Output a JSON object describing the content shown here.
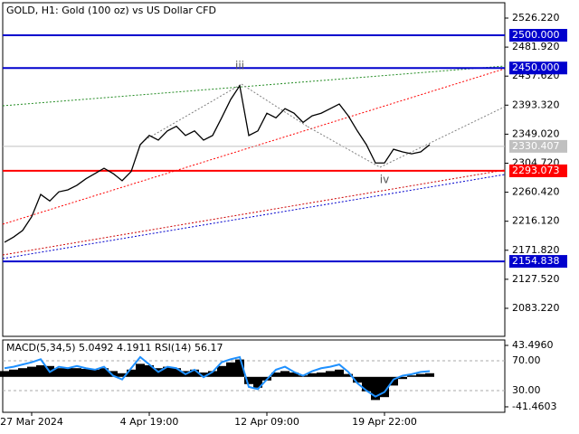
{
  "chart_data": [
    {
      "type": "line",
      "title": "GOLD, H1:  Gold (100 oz) vs US Dollar CFD",
      "color": "#000000",
      "values": [
        2184,
        2192,
        2202,
        2223,
        2257,
        2247,
        2261,
        2264,
        2271,
        2281,
        2289,
        2297,
        2289,
        2278,
        2292,
        2333,
        2347,
        2340,
        2354,
        2361,
        2347,
        2354,
        2340,
        2347,
        2374,
        2402,
        2423,
        2347,
        2354,
        2381,
        2374,
        2388,
        2381,
        2367,
        2377,
        2381,
        2388,
        2395,
        2377,
        2354,
        2333,
        2305,
        2305,
        2326,
        2322,
        2319,
        2322,
        2333
      ],
      "ylim": [
        2040.4,
        2548.3
      ],
      "yticks": [
        {
          "value": 2526.22,
          "label": "2526.220"
        },
        {
          "value": 2481.92,
          "label": "2481.920"
        },
        {
          "value": 2437.62,
          "label": "2437.620"
        },
        {
          "value": 2393.32,
          "label": "2393.320"
        },
        {
          "value": 2349.02,
          "label": "2349.020"
        },
        {
          "value": 2304.72,
          "label": "2304.720"
        },
        {
          "value": 2260.42,
          "label": "2260.420"
        },
        {
          "value": 2216.12,
          "label": "2216.120"
        },
        {
          "value": 2171.82,
          "label": "2171.820"
        },
        {
          "value": 2127.52,
          "label": "2127.520"
        },
        {
          "value": 2083.22,
          "label": "2083.220"
        }
      ],
      "xticks": [
        {
          "value": 3,
          "label": "27 Mar 2024"
        },
        {
          "value": 16,
          "label": "4 Apr 19:00"
        },
        {
          "value": 29,
          "label": "12 Apr 09:00"
        },
        {
          "value": 42,
          "label": "19 Apr 22:00"
        }
      ],
      "levels": [
        {
          "value": 2500,
          "label": "2500.000",
          "color": "#0000cd"
        },
        {
          "value": 2450,
          "label": "2450.000",
          "color": "#0000cd"
        },
        {
          "value": 2330.407,
          "label": "2330.407",
          "color": "#c0c0c0"
        },
        {
          "value": 2293.073,
          "label": "2293.073",
          "color": "#ff0000"
        },
        {
          "value": 2154.838,
          "label": "2154.838",
          "color": "#0000cd"
        }
      ],
      "annotations": [
        {
          "text": "iii",
          "at": 26,
          "price": 2453
        },
        {
          "text": "iv",
          "at": 42,
          "price": 2279
        }
      ]
    },
    {
      "type": "macd",
      "title": "MACD(5,34,5) 5.0492 4.1911 RSI(14) 56.17",
      "series": [
        {
          "name": "MACD",
          "color": "#000000",
          "values": [
            8,
            10,
            12,
            14,
            16,
            15,
            12,
            13,
            12,
            11,
            10,
            12,
            8,
            5,
            10,
            18,
            16,
            12,
            14,
            12,
            8,
            10,
            6,
            8,
            15,
            20,
            24,
            -10,
            -15,
            -5,
            6,
            8,
            6,
            2,
            5,
            6,
            8,
            10,
            4,
            -8,
            -20,
            -32,
            -28,
            -12,
            -3,
            2,
            4,
            5
          ]
        },
        {
          "name": "RSI",
          "color": "#1e90ff",
          "axis": "y2",
          "values": [
            60,
            62,
            65,
            68,
            72,
            55,
            62,
            60,
            63,
            60,
            58,
            62,
            50,
            45,
            60,
            75,
            65,
            55,
            62,
            60,
            52,
            58,
            48,
            55,
            68,
            72,
            75,
            35,
            32,
            45,
            58,
            62,
            55,
            50,
            56,
            60,
            62,
            65,
            55,
            40,
            30,
            22,
            28,
            45,
            50,
            52,
            55,
            56
          ]
        }
      ],
      "ylim": [
        -49,
        51
      ],
      "yticks": [
        {
          "value": 43.496,
          "label": "43.4960"
        },
        {
          "value": -41.4603,
          "label": "-41.4603"
        }
      ],
      "y2lim": [
        0.9,
        97.9
      ],
      "y2ticks": [
        {
          "value": 70,
          "label": "70.00"
        },
        {
          "value": 30,
          "label": "30.00"
        }
      ]
    }
  ]
}
